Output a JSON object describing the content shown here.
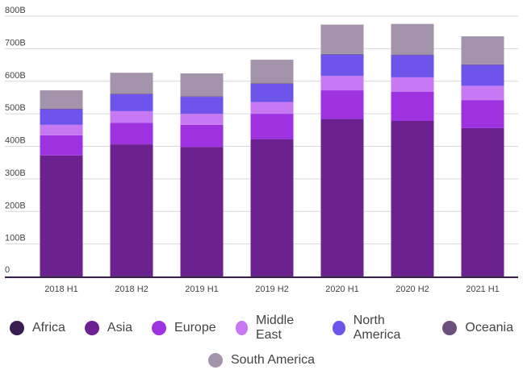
{
  "chart_data": {
    "type": "bar",
    "stacked": true,
    "categories": [
      "2018 H1",
      "2018 H2",
      "2019 H1",
      "2019 H2",
      "2020 H1",
      "2020 H2",
      "2021 H1"
    ],
    "y_ticks": [
      "0",
      "100B",
      "200B",
      "300B",
      "400B",
      "500B",
      "600B",
      "700B",
      "800B"
    ],
    "ylim": [
      0,
      800
    ],
    "grid": true,
    "legend_position": "bottom",
    "series": [
      {
        "name": "Africa",
        "color": "#3a1e4f",
        "values": [
          2,
          2,
          2,
          2,
          2,
          2,
          2
        ]
      },
      {
        "name": "Asia",
        "color": "#6c2191",
        "values": [
          370,
          404,
          396,
          420,
          482,
          476,
          454
        ]
      },
      {
        "name": "Europe",
        "color": "#9e32e1",
        "values": [
          62,
          66,
          68,
          78,
          88,
          90,
          86
        ]
      },
      {
        "name": "Middle East",
        "color": "#c679f3",
        "values": [
          32,
          36,
          34,
          36,
          44,
          44,
          44
        ]
      },
      {
        "name": "North America",
        "color": "#6e54ea",
        "values": [
          48,
          52,
          52,
          56,
          66,
          68,
          64
        ]
      },
      {
        "name": "Oceania",
        "color": "#6d4f7c",
        "values": [
          2,
          2,
          2,
          2,
          2,
          2,
          2
        ]
      },
      {
        "name": "South America",
        "color": "#a494ab",
        "values": [
          56,
          64,
          70,
          72,
          90,
          94,
          86
        ]
      }
    ]
  }
}
